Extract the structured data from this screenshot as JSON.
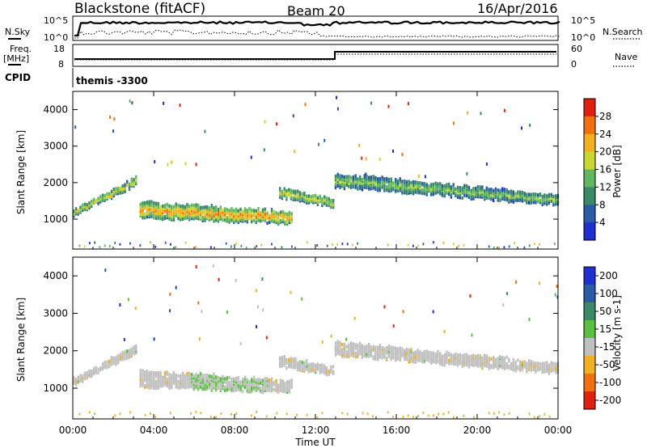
{
  "header": {
    "station": "Blackstone (fitACF)",
    "beam": "Beam 20",
    "date": "16/Apr/2016"
  },
  "top_panels": {
    "nsky_label": "N.Sky",
    "nsky_ticks": [
      "10^5",
      "10^0"
    ],
    "nsearch_label": "N.Search",
    "nsearch_ticks": [
      "10^5",
      "10^0"
    ],
    "freq_label_1": "Freq.",
    "freq_label_2": "[MHz]",
    "freq_ticks": [
      "18",
      "8"
    ],
    "nave_label": "Nave",
    "nave_ticks": [
      "60",
      "0"
    ],
    "cpid_label": "CPID",
    "cpid_value": "themis -3300"
  },
  "chart_data": [
    {
      "type": "heatmap",
      "title": "",
      "xlabel": "Time UT",
      "ylabel": "Slant Range [km]",
      "x_ticks": [
        "00:00",
        "04:00",
        "08:00",
        "12:00",
        "16:00",
        "20:00",
        "00:00"
      ],
      "xlim": [
        0,
        24
      ],
      "y_ticks": [
        "1000",
        "2000",
        "3000",
        "4000"
      ],
      "ylim": [
        180,
        4500
      ],
      "colorbar_label": "Power [dB]",
      "colorbar_ticks": [
        "4",
        "8",
        "12",
        "16",
        "20",
        "24",
        "28"
      ],
      "colorbar_range": [
        0,
        32
      ],
      "colors": [
        "#1f2fd0",
        "#2a5aa8",
        "#3a8a6a",
        "#60b860",
        "#c8d830",
        "#f0b020",
        "#f07010",
        "#e02010"
      ],
      "scatter_regions": [
        {
          "t": [
            0.0,
            3.1
          ],
          "range_start": [
            1100,
            1950
          ],
          "width": [
            150,
            200
          ],
          "power_db": 18
        },
        {
          "t": [
            3.3,
            10.8
          ],
          "range_start": [
            1050,
            900
          ],
          "width": [
            420,
            300
          ],
          "power_db": 22
        },
        {
          "t": [
            10.2,
            12.9
          ],
          "range_start": [
            1600,
            1350
          ],
          "width": [
            250,
            200
          ],
          "power_db": 18
        },
        {
          "t": [
            12.95,
            24.0
          ],
          "range_start": [
            1900,
            1400
          ],
          "width": [
            350,
            250
          ],
          "power_db": 14
        }
      ]
    },
    {
      "type": "heatmap",
      "title": "",
      "xlabel": "Time UT",
      "ylabel": "Slant Range [km]",
      "x_ticks": [
        "00:00",
        "04:00",
        "08:00",
        "12:00",
        "16:00",
        "20:00",
        "00:00"
      ],
      "xlim": [
        0,
        24
      ],
      "y_ticks": [
        "1000",
        "2000",
        "3000",
        "4000"
      ],
      "ylim": [
        180,
        4500
      ],
      "colorbar_label": "Velocity [m s-1]",
      "colorbar_ticks": [
        "200",
        "100",
        "50",
        "15",
        "-15",
        "-50",
        "-100",
        "-200"
      ],
      "colorbar_range": [
        -250,
        250
      ],
      "colors": [
        "#1f2fd0",
        "#2a5aa8",
        "#3a8a6a",
        "#5ac040",
        "#c0c0c0",
        "#f0b020",
        "#f07010",
        "#e02010"
      ],
      "scatter_regions": [
        {
          "t": [
            0.0,
            3.1
          ],
          "range_start": [
            1100,
            1950
          ],
          "width": [
            150,
            200
          ],
          "velocity": 0
        },
        {
          "t": [
            3.3,
            10.8
          ],
          "range_start": [
            1050,
            900
          ],
          "width": [
            420,
            300
          ],
          "velocity": 20
        },
        {
          "t": [
            10.2,
            12.9
          ],
          "range_start": [
            1600,
            1350
          ],
          "width": [
            250,
            200
          ],
          "velocity": 0
        },
        {
          "t": [
            12.95,
            24.0
          ],
          "range_start": [
            1900,
            1400
          ],
          "width": [
            350,
            250
          ],
          "velocity": 0
        }
      ]
    }
  ]
}
